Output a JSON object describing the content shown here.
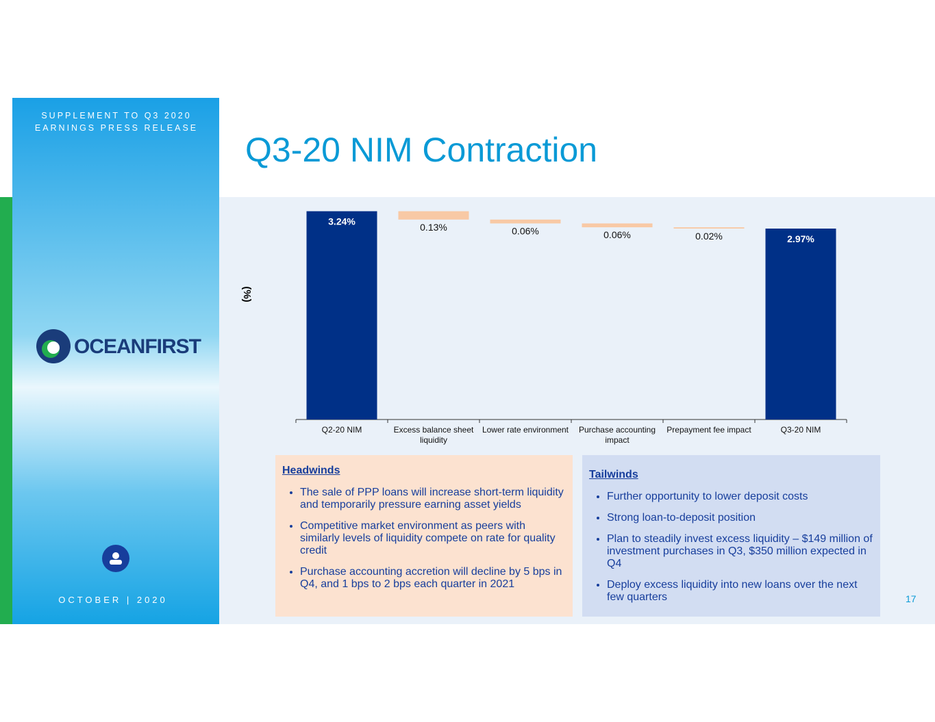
{
  "slide": {
    "supplement": "SUPPLEMENT TO Q3 2020 EARNINGS PRESS RELEASE",
    "logo": "OCEANFIRST",
    "date": "OCTOBER | 2020",
    "page": "17"
  },
  "chart_data": {
    "type": "waterfall",
    "title": "Q3-20 NIM Contraction",
    "y_label": "(%)",
    "categories": [
      "Q2-20 NIM",
      "Excess balance sheet liquidity",
      "Lower rate environment",
      "Purchase accounting impact",
      "Prepayment fee impact",
      "Q3-20 NIM"
    ],
    "measures": [
      "total",
      "decrease",
      "decrease",
      "decrease",
      "decrease",
      "total"
    ],
    "values": [
      3.24,
      0.13,
      0.06,
      0.06,
      0.02,
      2.97
    ],
    "value_labels": [
      "3.24%",
      "0.13%",
      "0.06%",
      "0.06%",
      "0.02%",
      "2.97%"
    ],
    "total_color": "#003087",
    "decrease_color": "#f8c9a5",
    "ylim": [
      0,
      3.3
    ]
  },
  "headwinds": {
    "title": "Headwinds",
    "items": [
      "The sale of PPP loans will increase short-term liquidity and temporarily pressure earning asset yields",
      "Competitive market environment as peers with similarly levels of liquidity compete on rate for quality credit",
      "Purchase accounting accretion will decline by 5 bps in Q4, and 1 bps to 2 bps each quarter in 2021"
    ]
  },
  "tailwinds": {
    "title": "Tailwinds",
    "items": [
      "Further opportunity to lower deposit costs",
      "Strong loan-to-deposit position",
      "Plan to steadily invest excess liquidity – $149 million of investment purchases in Q3, $350 million expected in Q4",
      "Deploy excess liquidity into new loans over the next few quarters"
    ]
  }
}
